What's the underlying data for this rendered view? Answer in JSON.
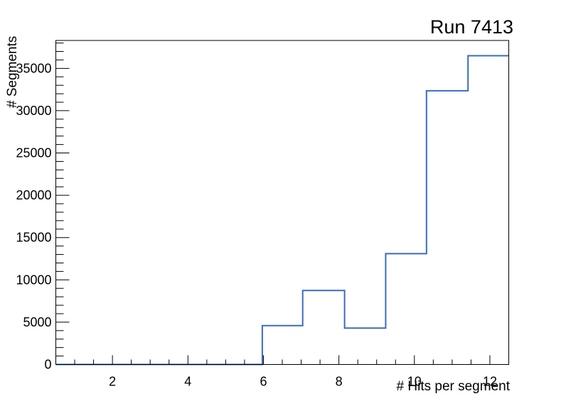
{
  "title": "Run 7413",
  "background_color": "#ffffff",
  "chart_data": {
    "type": "step-histogram",
    "title": "Run 7413",
    "xlabel": "# Hits per segment",
    "ylabel": "# Segments",
    "xlim": [
      0.5,
      12.5
    ],
    "ylim": [
      0,
      38300
    ],
    "x_major_ticks": [
      2,
      4,
      6,
      8,
      10,
      12
    ],
    "x_minor_step": 0.5,
    "y_major_ticks": [
      0,
      5000,
      10000,
      15000,
      20000,
      25000,
      30000,
      35000
    ],
    "y_minor_step": 1000,
    "grid": false,
    "legend": "none",
    "line_color": "#3a6bc5",
    "line_width": 2,
    "frame_color": "#000000",
    "bin_edges": [
      0.5,
      5.97,
      7.04,
      8.15,
      9.24,
      10.32,
      11.42,
      12.5
    ],
    "bin_values": [
      0,
      4600,
      8750,
      4300,
      13100,
      32350,
      36500
    ]
  }
}
